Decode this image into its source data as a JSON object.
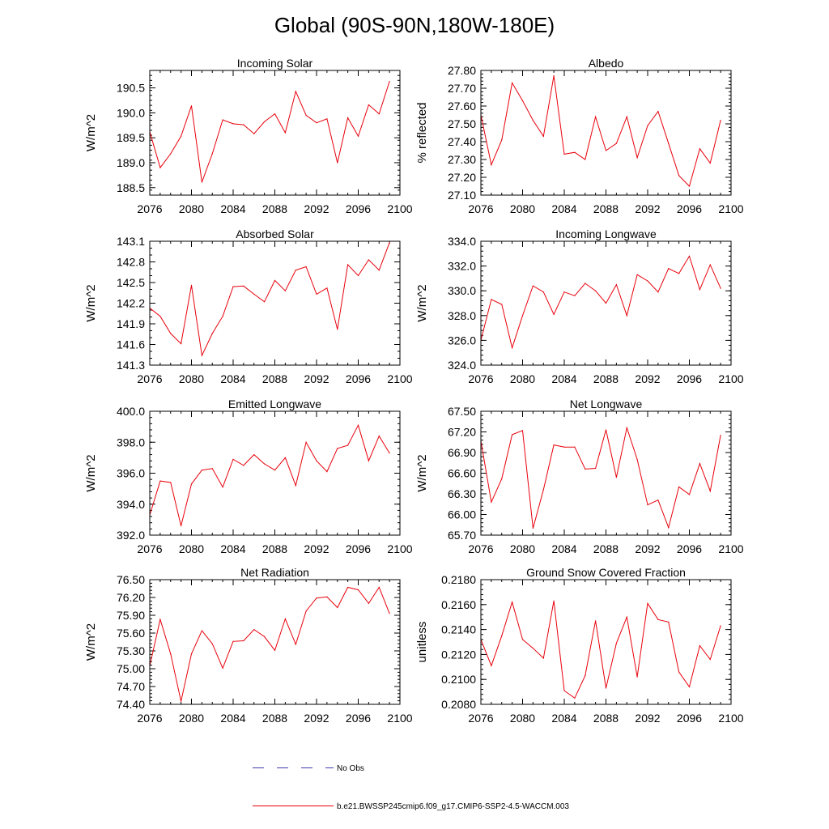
{
  "title": "Global (90S-90N,180W-180E)",
  "colors": {
    "series": "#e8000b",
    "no_obs": "#3b3bb0",
    "axis": "#000000"
  },
  "legend": {
    "items": [
      {
        "label": "No Obs",
        "style": "dashed"
      },
      {
        "label": "b.e21.BWSSP245cmip6.f09_g17.CMIP6-SSP2-4.5-WACCM.003",
        "style": "solid"
      }
    ]
  },
  "chart_data": [
    {
      "id": "incoming-solar",
      "type": "line",
      "title": "Incoming Solar",
      "ylabel": "W/m^2",
      "xlabel": "",
      "xlim": [
        2076,
        2100
      ],
      "ylim": [
        188.35,
        190.85
      ],
      "xticks": [
        "2076",
        "2080",
        "2084",
        "2088",
        "2092",
        "2096",
        "2100"
      ],
      "yticks": [
        "188.5",
        "189.0",
        "189.5",
        "190.0",
        "190.5"
      ],
      "ytick_values": [
        188.5,
        189.0,
        189.5,
        190.0,
        190.5
      ],
      "y_minor_step": 0.1,
      "series": [
        {
          "name": "b.e21.BWSSP245cmip6.f09_g17.CMIP6-SSP2-4.5-WACCM.003",
          "x": [
            2076,
            2077,
            2078,
            2079,
            2080,
            2081,
            2082,
            2083,
            2084,
            2085,
            2086,
            2087,
            2088,
            2089,
            2090,
            2091,
            2092,
            2093,
            2094,
            2095,
            2096,
            2097,
            2098,
            2099
          ],
          "y": [
            189.62,
            188.9,
            189.18,
            189.53,
            190.14,
            188.61,
            189.18,
            189.86,
            189.78,
            189.76,
            189.58,
            189.82,
            189.98,
            189.6,
            190.43,
            189.95,
            189.8,
            189.88,
            189.0,
            189.9,
            189.53,
            190.16,
            189.98,
            190.63
          ]
        }
      ]
    },
    {
      "id": "albedo",
      "type": "line",
      "title": "Albedo",
      "ylabel": "% reflected",
      "xlabel": "",
      "xlim": [
        2076,
        2100
      ],
      "ylim": [
        27.1,
        27.8
      ],
      "xticks": [
        "2076",
        "2080",
        "2084",
        "2088",
        "2092",
        "2096",
        "2100"
      ],
      "yticks": [
        "27.10",
        "27.20",
        "27.30",
        "27.40",
        "27.50",
        "27.60",
        "27.70",
        "27.80"
      ],
      "ytick_values": [
        27.1,
        27.2,
        27.3,
        27.4,
        27.5,
        27.6,
        27.7,
        27.8
      ],
      "y_minor_step": 0.02,
      "series": [
        {
          "name": "b.e21.BWSSP245cmip6.f09_g17.CMIP6-SSP2-4.5-WACCM.003",
          "x": [
            2076,
            2077,
            2078,
            2079,
            2080,
            2081,
            2082,
            2083,
            2084,
            2085,
            2086,
            2087,
            2088,
            2089,
            2090,
            2091,
            2092,
            2093,
            2094,
            2095,
            2096,
            2097,
            2098,
            2099
          ],
          "y": [
            27.55,
            27.27,
            27.41,
            27.73,
            27.63,
            27.52,
            27.43,
            27.77,
            27.33,
            27.34,
            27.3,
            27.54,
            27.35,
            27.39,
            27.54,
            27.31,
            27.49,
            27.57,
            27.39,
            27.21,
            27.15,
            27.36,
            27.28,
            27.52
          ]
        }
      ]
    },
    {
      "id": "absorbed-solar",
      "type": "line",
      "title": "Absorbed Solar",
      "ylabel": "W/m^2",
      "xlabel": "",
      "xlim": [
        2076,
        2100
      ],
      "ylim": [
        141.3,
        143.1
      ],
      "xticks": [
        "2076",
        "2080",
        "2084",
        "2088",
        "2092",
        "2096",
        "2100"
      ],
      "yticks": [
        "141.3",
        "141.6",
        "141.9",
        "142.2",
        "142.5",
        "142.8",
        "143.1"
      ],
      "ytick_values": [
        141.3,
        141.6,
        141.9,
        142.2,
        142.5,
        142.8,
        143.1
      ],
      "y_minor_step": 0.1,
      "series": [
        {
          "name": "b.e21.BWSSP245cmip6.f09_g17.CMIP6-SSP2-4.5-WACCM.003",
          "x": [
            2076,
            2077,
            2078,
            2079,
            2080,
            2081,
            2082,
            2083,
            2084,
            2085,
            2086,
            2087,
            2088,
            2089,
            2090,
            2091,
            2092,
            2093,
            2094,
            2095,
            2096,
            2097,
            2098,
            2099
          ],
          "y": [
            142.13,
            142.01,
            141.76,
            141.61,
            142.46,
            141.44,
            141.76,
            142.01,
            142.44,
            142.45,
            142.33,
            142.22,
            142.53,
            142.38,
            142.68,
            142.73,
            142.33,
            142.42,
            141.82,
            142.76,
            142.6,
            142.83,
            142.68,
            143.08
          ]
        }
      ]
    },
    {
      "id": "incoming-longwave",
      "type": "line",
      "title": "Incoming Longwave",
      "ylabel": "W/m^2",
      "xlabel": "",
      "xlim": [
        2076,
        2100
      ],
      "ylim": [
        324.0,
        334.0
      ],
      "xticks": [
        "2076",
        "2080",
        "2084",
        "2088",
        "2092",
        "2096",
        "2100"
      ],
      "yticks": [
        "324.0",
        "326.0",
        "328.0",
        "330.0",
        "332.0",
        "334.0"
      ],
      "ytick_values": [
        324.0,
        326.0,
        328.0,
        330.0,
        332.0,
        334.0
      ],
      "y_minor_step": 0.4,
      "series": [
        {
          "name": "b.e21.BWSSP245cmip6.f09_g17.CMIP6-SSP2-4.5-WACCM.003",
          "x": [
            2076,
            2077,
            2078,
            2079,
            2080,
            2081,
            2082,
            2083,
            2084,
            2085,
            2086,
            2087,
            2088,
            2089,
            2090,
            2091,
            2092,
            2093,
            2094,
            2095,
            2096,
            2097,
            2098,
            2099
          ],
          "y": [
            326.0,
            329.3,
            328.9,
            325.4,
            328.0,
            330.4,
            329.9,
            328.1,
            329.9,
            329.6,
            330.6,
            330.0,
            329.0,
            330.5,
            328.0,
            331.3,
            330.8,
            329.9,
            331.8,
            331.4,
            332.8,
            330.1,
            332.1,
            330.2
          ]
        }
      ]
    },
    {
      "id": "emitted-longwave",
      "type": "line",
      "title": "Emitted Longwave",
      "ylabel": "W/m^2",
      "xlabel": "",
      "xlim": [
        2076,
        2100
      ],
      "ylim": [
        392.0,
        400.0
      ],
      "xticks": [
        "2076",
        "2080",
        "2084",
        "2088",
        "2092",
        "2096",
        "2100"
      ],
      "yticks": [
        "392.0",
        "394.0",
        "396.0",
        "398.0",
        "400.0"
      ],
      "ytick_values": [
        392.0,
        394.0,
        396.0,
        398.0,
        400.0
      ],
      "y_minor_step": 0.4,
      "series": [
        {
          "name": "b.e21.BWSSP245cmip6.f09_g17.CMIP6-SSP2-4.5-WACCM.003",
          "x": [
            2076,
            2077,
            2078,
            2079,
            2080,
            2081,
            2082,
            2083,
            2084,
            2085,
            2086,
            2087,
            2088,
            2089,
            2090,
            2091,
            2092,
            2093,
            2094,
            2095,
            2096,
            2097,
            2098,
            2099
          ],
          "y": [
            393.3,
            395.5,
            395.4,
            392.6,
            395.3,
            396.2,
            396.3,
            395.1,
            396.9,
            396.5,
            397.2,
            396.6,
            396.2,
            397.0,
            395.2,
            398.0,
            396.8,
            396.1,
            397.6,
            397.8,
            399.1,
            396.8,
            398.4,
            397.3
          ]
        }
      ]
    },
    {
      "id": "net-longwave",
      "type": "line",
      "title": "Net Longwave",
      "ylabel": "W/m^2",
      "xlabel": "",
      "xlim": [
        2076,
        2100
      ],
      "ylim": [
        65.7,
        67.5
      ],
      "xticks": [
        "2076",
        "2080",
        "2084",
        "2088",
        "2092",
        "2096",
        "2100"
      ],
      "yticks": [
        "65.70",
        "66.00",
        "66.30",
        "66.60",
        "66.90",
        "67.20",
        "67.50"
      ],
      "ytick_values": [
        65.7,
        66.0,
        66.3,
        66.6,
        66.9,
        67.2,
        67.5
      ],
      "y_minor_step": 0.06,
      "series": [
        {
          "name": "b.e21.BWSSP245cmip6.f09_g17.CMIP6-SSP2-4.5-WACCM.003",
          "x": [
            2076,
            2077,
            2078,
            2079,
            2080,
            2081,
            2082,
            2083,
            2084,
            2085,
            2086,
            2087,
            2088,
            2089,
            2090,
            2091,
            2092,
            2093,
            2094,
            2095,
            2096,
            2097,
            2098,
            2099
          ],
          "y": [
            67.07,
            66.18,
            66.52,
            67.16,
            67.22,
            65.8,
            66.36,
            67.01,
            66.98,
            66.98,
            66.66,
            66.67,
            67.23,
            66.54,
            67.26,
            66.8,
            66.14,
            66.21,
            65.81,
            66.4,
            66.29,
            66.74,
            66.34,
            67.15
          ]
        }
      ]
    },
    {
      "id": "net-radiation",
      "type": "line",
      "title": "Net Radiation",
      "ylabel": "W/m^2",
      "xlabel": "",
      "xlim": [
        2076,
        2100
      ],
      "ylim": [
        74.4,
        76.5
      ],
      "xticks": [
        "2076",
        "2080",
        "2084",
        "2088",
        "2092",
        "2096",
        "2100"
      ],
      "yticks": [
        "74.40",
        "74.70",
        "75.00",
        "75.30",
        "75.60",
        "75.90",
        "76.20",
        "76.50"
      ],
      "ytick_values": [
        74.4,
        74.7,
        75.0,
        75.3,
        75.6,
        75.9,
        76.2,
        76.5
      ],
      "y_minor_step": 0.06,
      "series": [
        {
          "name": "b.e21.BWSSP245cmip6.f09_g17.CMIP6-SSP2-4.5-WACCM.003",
          "x": [
            2076,
            2077,
            2078,
            2079,
            2080,
            2081,
            2082,
            2083,
            2084,
            2085,
            2086,
            2087,
            2088,
            2089,
            2090,
            2091,
            2092,
            2093,
            2094,
            2095,
            2096,
            2097,
            2098,
            2099
          ],
          "y": [
            75.05,
            75.83,
            75.25,
            74.45,
            75.25,
            75.64,
            75.42,
            75.01,
            75.46,
            75.47,
            75.66,
            75.54,
            75.31,
            75.84,
            75.41,
            75.97,
            76.19,
            76.21,
            76.03,
            76.37,
            76.33,
            76.1,
            76.37,
            75.93
          ]
        }
      ]
    },
    {
      "id": "ground-snow",
      "type": "line",
      "title": "Ground Snow Covered Fraction",
      "ylabel": "unitless",
      "xlabel": "",
      "xlim": [
        2076,
        2100
      ],
      "ylim": [
        0.208,
        0.218
      ],
      "xticks": [
        "2076",
        "2080",
        "2084",
        "2088",
        "2092",
        "2096",
        "2100"
      ],
      "yticks": [
        "0.2080",
        "0.2100",
        "0.2120",
        "0.2140",
        "0.2160",
        "0.2180"
      ],
      "ytick_values": [
        0.208,
        0.21,
        0.212,
        0.214,
        0.216,
        0.218
      ],
      "y_minor_step": 0.0004,
      "series": [
        {
          "name": "b.e21.BWSSP245cmip6.f09_g17.CMIP6-SSP2-4.5-WACCM.003",
          "x": [
            2076,
            2077,
            2078,
            2079,
            2080,
            2081,
            2082,
            2083,
            2084,
            2085,
            2086,
            2087,
            2088,
            2089,
            2090,
            2091,
            2092,
            2093,
            2094,
            2095,
            2096,
            2097,
            2098,
            2099
          ],
          "y": [
            0.2132,
            0.2111,
            0.2135,
            0.2162,
            0.2132,
            0.2125,
            0.2117,
            0.2163,
            0.2091,
            0.2085,
            0.2103,
            0.2147,
            0.2093,
            0.2129,
            0.215,
            0.2102,
            0.2161,
            0.2148,
            0.2146,
            0.2106,
            0.2094,
            0.2127,
            0.2116,
            0.2143
          ]
        }
      ]
    }
  ]
}
